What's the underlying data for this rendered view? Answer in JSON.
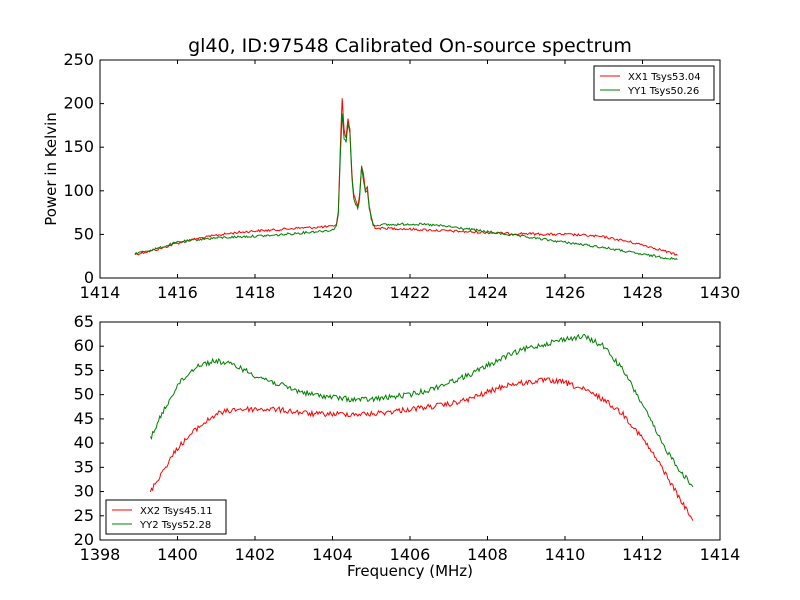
{
  "chart_data": [
    {
      "type": "line",
      "title": "gl40, ID:97548 Calibrated On-source spectrum",
      "xlabel": "",
      "ylabel": "Power in Kelvin",
      "xlim": [
        1414,
        1430
      ],
      "ylim": [
        0,
        250
      ],
      "xticks": [
        1414,
        1416,
        1418,
        1420,
        1422,
        1424,
        1426,
        1428,
        1430
      ],
      "yticks": [
        0,
        50,
        100,
        150,
        200,
        250
      ],
      "grid": false,
      "legend_position": "upper right",
      "series": [
        {
          "name": "XX1 Tsys53.04",
          "color": "#ff0000",
          "x": [
            1414.9,
            1415.5,
            1416.0,
            1416.5,
            1417.0,
            1417.5,
            1418.0,
            1418.5,
            1419.0,
            1419.5,
            1420.0,
            1420.1,
            1420.15,
            1420.2,
            1420.25,
            1420.3,
            1420.35,
            1420.4,
            1420.45,
            1420.5,
            1420.55,
            1420.6,
            1420.65,
            1420.7,
            1420.75,
            1420.8,
            1420.85,
            1420.9,
            1420.95,
            1421.0,
            1421.05,
            1421.1,
            1421.2,
            1421.5,
            1422.0,
            1422.5,
            1423.0,
            1423.5,
            1424.0,
            1424.5,
            1425.0,
            1425.5,
            1426.0,
            1426.5,
            1427.0,
            1427.5,
            1428.0,
            1428.5,
            1428.9
          ],
          "y": [
            27,
            33,
            40,
            45,
            49,
            52,
            54,
            55,
            57,
            58,
            59,
            62,
            75,
            150,
            205,
            170,
            160,
            183,
            170,
            120,
            95,
            90,
            82,
            95,
            128,
            118,
            100,
            105,
            82,
            70,
            62,
            58,
            57,
            57,
            56,
            55,
            54,
            53,
            52,
            51,
            51,
            50,
            50,
            49,
            47,
            43,
            38,
            32,
            26
          ]
        },
        {
          "name": "YY1 Tsys50.26",
          "color": "#008000",
          "x": [
            1414.9,
            1415.5,
            1416.0,
            1416.5,
            1417.0,
            1417.5,
            1418.0,
            1418.5,
            1419.0,
            1419.5,
            1420.0,
            1420.1,
            1420.15,
            1420.2,
            1420.25,
            1420.3,
            1420.35,
            1420.4,
            1420.45,
            1420.5,
            1420.55,
            1420.6,
            1420.65,
            1420.7,
            1420.75,
            1420.8,
            1420.85,
            1420.9,
            1420.95,
            1421.0,
            1421.05,
            1421.1,
            1421.2,
            1421.5,
            1422.0,
            1422.5,
            1423.0,
            1423.5,
            1424.0,
            1424.5,
            1425.0,
            1425.5,
            1426.0,
            1426.5,
            1427.0,
            1427.5,
            1428.0,
            1428.5,
            1428.9
          ],
          "y": [
            28,
            34,
            41,
            44,
            46,
            47,
            48,
            49,
            51,
            53,
            55,
            60,
            72,
            140,
            188,
            160,
            155,
            178,
            165,
            115,
            90,
            85,
            80,
            90,
            130,
            112,
            98,
            100,
            80,
            68,
            61,
            60,
            61,
            61,
            62,
            61,
            59,
            56,
            53,
            50,
            47,
            44,
            41,
            38,
            35,
            31,
            27,
            24,
            21
          ]
        }
      ]
    },
    {
      "type": "line",
      "title": "",
      "xlabel": "Frequency (MHz)",
      "ylabel": "",
      "xlim": [
        1398,
        1414
      ],
      "ylim": [
        20,
        65
      ],
      "xticks": [
        1398,
        1400,
        1402,
        1404,
        1406,
        1408,
        1410,
        1412,
        1414
      ],
      "yticks": [
        20,
        25,
        30,
        35,
        40,
        45,
        50,
        55,
        60,
        65
      ],
      "grid": false,
      "legend_position": "lower left",
      "series": [
        {
          "name": "XX2 Tsys45.11",
          "color": "#ff0000",
          "x": [
            1399.3,
            1399.6,
            1400.0,
            1400.5,
            1401.0,
            1401.5,
            1402.0,
            1402.5,
            1403.0,
            1403.5,
            1404.0,
            1404.5,
            1405.0,
            1405.5,
            1406.0,
            1406.5,
            1407.0,
            1407.5,
            1408.0,
            1408.5,
            1409.0,
            1409.5,
            1410.0,
            1410.5,
            1411.0,
            1411.5,
            1412.0,
            1412.5,
            1413.0,
            1413.3
          ],
          "y": [
            30,
            34,
            39,
            43,
            46,
            47,
            47,
            47,
            46.5,
            46,
            46,
            46,
            46,
            46.5,
            47,
            47.5,
            48,
            49,
            50.5,
            52,
            52.5,
            53,
            52.5,
            51,
            49,
            46,
            41,
            35,
            28,
            24
          ]
        },
        {
          "name": "YY2 Tsys52.28",
          "color": "#008000",
          "x": [
            1399.3,
            1399.6,
            1400.0,
            1400.5,
            1401.0,
            1401.5,
            1402.0,
            1402.5,
            1403.0,
            1403.5,
            1404.0,
            1404.5,
            1405.0,
            1405.5,
            1406.0,
            1406.5,
            1407.0,
            1407.5,
            1408.0,
            1408.5,
            1409.0,
            1409.5,
            1410.0,
            1410.5,
            1411.0,
            1411.5,
            1412.0,
            1412.5,
            1413.0,
            1413.3
          ],
          "y": [
            41,
            46,
            52,
            56,
            57,
            56,
            54,
            52.5,
            51,
            50,
            49.5,
            49,
            49,
            49.5,
            50,
            51,
            52.5,
            54,
            56,
            58,
            59.5,
            60.5,
            61.5,
            62,
            60,
            55,
            48,
            40,
            34,
            31
          ]
        }
      ]
    }
  ]
}
